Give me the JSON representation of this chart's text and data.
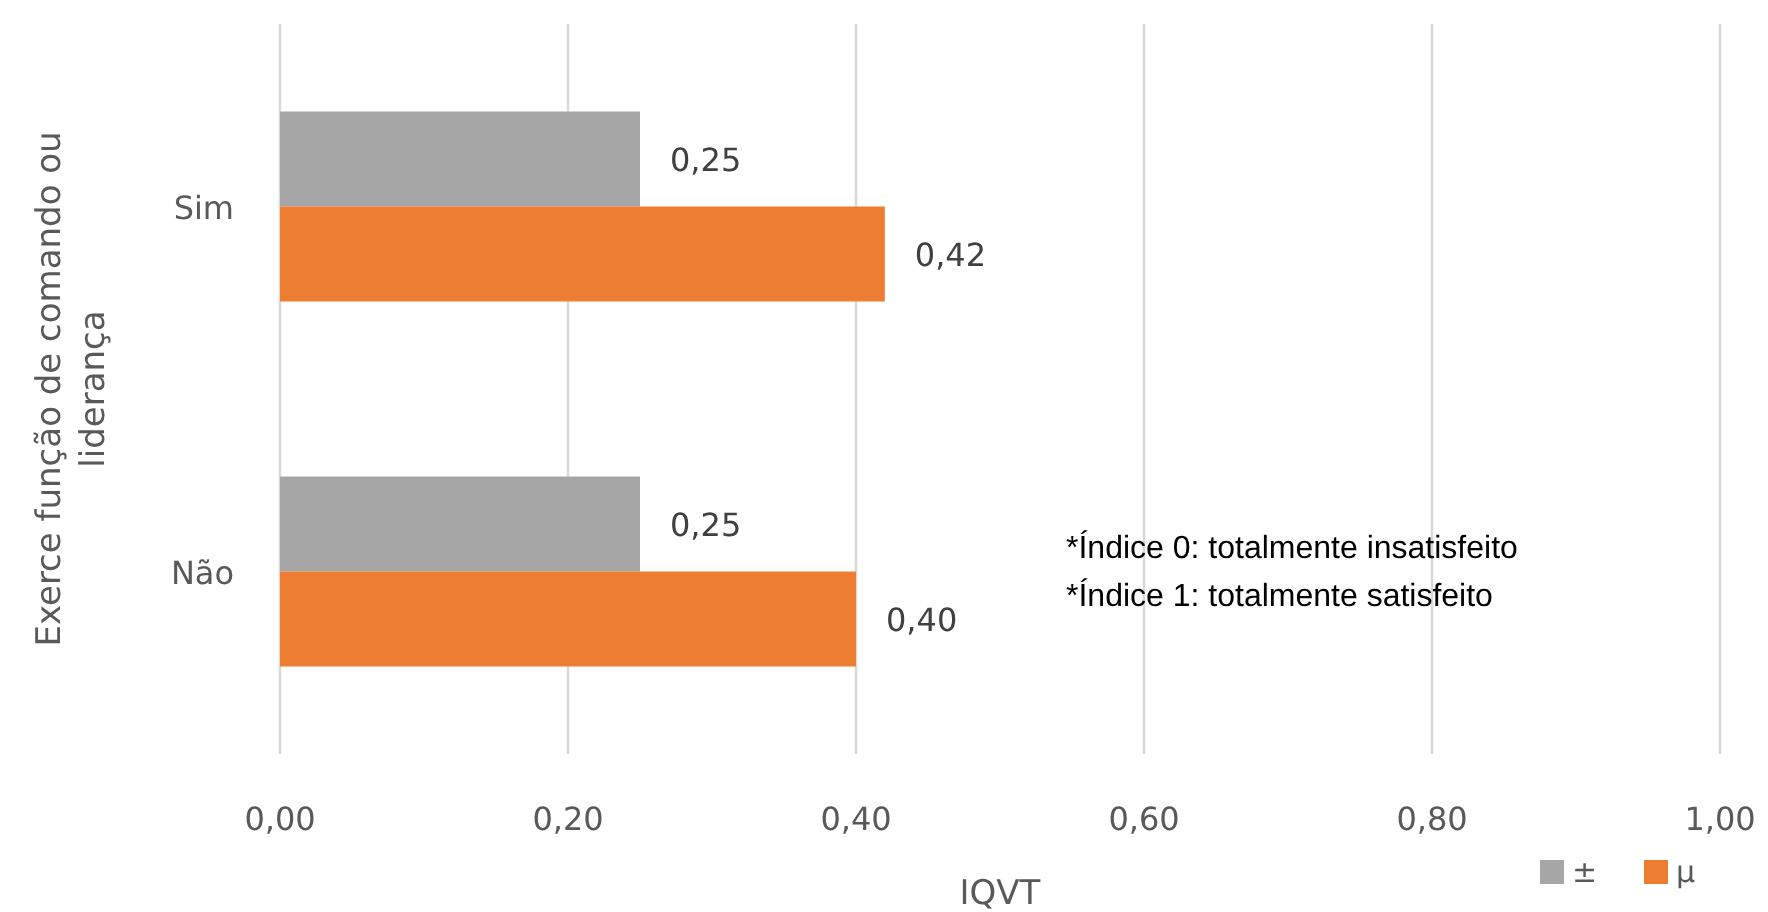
{
  "chart_data": {
    "type": "bar",
    "orientation": "horizontal",
    "xlabel": "IQVT",
    "ylabel": "Exerce função de comando ou liderança",
    "categories": [
      "Sim",
      "Não"
    ],
    "series": [
      {
        "name": "±",
        "color": "#a5a5a5",
        "values": [
          0.25,
          0.25
        ],
        "value_labels": [
          "0,25",
          "0,25"
        ]
      },
      {
        "name": "μ",
        "color": "#ed7d31",
        "values": [
          0.42,
          0.4
        ],
        "value_labels": [
          "0,42",
          "0,40"
        ]
      }
    ],
    "xlim": [
      0,
      1
    ],
    "xticks": [
      {
        "value": 0,
        "label": "0,00"
      },
      {
        "value": 0.2,
        "label": "0,20"
      },
      {
        "value": 0.4,
        "label": "0,40"
      },
      {
        "value": 0.6,
        "label": "0,60"
      },
      {
        "value": 0.8,
        "label": "0,80"
      },
      {
        "value": 1,
        "label": "1,00"
      }
    ],
    "grid": "x",
    "legend": "bottom right",
    "annotations": [
      "*Índice 0: totalmente insatisfeito",
      "*Índice 1: totalmente satisfeito"
    ]
  }
}
